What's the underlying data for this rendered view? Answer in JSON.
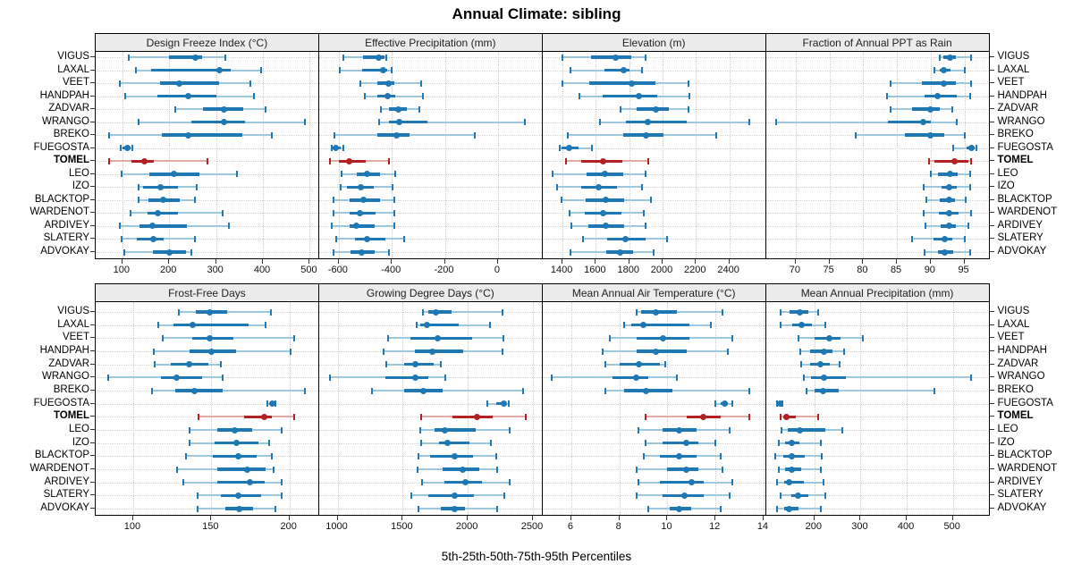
{
  "title": "Annual Climate: sibling",
  "caption": "5th-25th-50th-75th-95th Percentiles",
  "highlight_site": "TOMEL",
  "colors": {
    "series_blue": "#1f77b4",
    "series_blue_light": "#9ec7e0",
    "highlight_red": "#b22222",
    "highlight_red_light": "#e2aaa5",
    "strip_bg": "#ececec",
    "panel_border": "#000000",
    "grid": "#c8c8c8"
  },
  "chart_data": {
    "type": "dotplot-percentiles",
    "percentile_labels": [
      "5th",
      "25th",
      "50th",
      "75th",
      "95th"
    ],
    "legend_position": "none",
    "grid": "dotted",
    "sites": [
      "VIGUS",
      "LAXAL",
      "VEET",
      "HANDPAH",
      "ZADVAR",
      "WRANGO",
      "BREKO",
      "FUEGOSTA",
      "TOMEL",
      "LEO",
      "IZO",
      "BLACKTOP",
      "WARDENOT",
      "ARDIVEY",
      "SLATERY",
      "ADVOKAY"
    ],
    "panels": [
      {
        "title": "Design Freeze Index (°C)",
        "ticks": [
          100,
          200,
          300,
          400,
          500
        ],
        "xlim": [
          43,
          520
        ],
        "values": [
          [
            113,
            200,
            255,
            270,
            320
          ],
          [
            129,
            161,
            307,
            331,
            396
          ],
          [
            94,
            180,
            222,
            307,
            373
          ],
          [
            106,
            175,
            240,
            301,
            380
          ],
          [
            213,
            272,
            317,
            358,
            406
          ],
          [
            135,
            247,
            317,
            361,
            489
          ],
          [
            71,
            185,
            240,
            357,
            420
          ],
          [
            97,
            101,
            110,
            118,
            122
          ],
          [
            71,
            119,
            147,
            167,
            282
          ],
          [
            99,
            157,
            210,
            264,
            345
          ],
          [
            134,
            145,
            182,
            218,
            259
          ],
          [
            135,
            156,
            188,
            222,
            254
          ],
          [
            118,
            154,
            175,
            218,
            315
          ],
          [
            94,
            137,
            165,
            237,
            327
          ],
          [
            99,
            131,
            166,
            189,
            254
          ],
          [
            104,
            166,
            201,
            236,
            248
          ]
        ]
      },
      {
        "title": "Effective Precipitation (mm)",
        "ticks": [
          -600,
          -400,
          -200,
          0
        ],
        "xlim": [
          -674,
          168
        ],
        "values": [
          [
            -582,
            -507,
            -451,
            -427,
            -420
          ],
          [
            -597,
            -512,
            -432,
            -416,
            -400
          ],
          [
            -518,
            -456,
            -414,
            -389,
            -290
          ],
          [
            -503,
            -456,
            -417,
            -387,
            -282
          ],
          [
            -442,
            -411,
            -374,
            -344,
            -295
          ],
          [
            -448,
            -411,
            -372,
            -267,
            100
          ],
          [
            -615,
            -456,
            -383,
            -333,
            -88
          ],
          [
            -627,
            -622,
            -611,
            -593,
            -582
          ],
          [
            -633,
            -600,
            -560,
            -498,
            -411
          ],
          [
            -588,
            -531,
            -493,
            -445,
            -387
          ],
          [
            -594,
            -569,
            -518,
            -467,
            -397
          ],
          [
            -619,
            -560,
            -507,
            -445,
            -392
          ],
          [
            -619,
            -560,
            -520,
            -462,
            -389
          ],
          [
            -625,
            -560,
            -535,
            -464,
            -392
          ],
          [
            -610,
            -540,
            -492,
            -425,
            -355
          ],
          [
            -621,
            -554,
            -515,
            -465,
            -411
          ]
        ]
      },
      {
        "title": "Elevation (m)",
        "ticks": [
          1400,
          1600,
          1800,
          2000,
          2200,
          2400
        ],
        "xlim": [
          1280,
          2620
        ],
        "values": [
          [
            1402,
            1571,
            1717,
            1815,
            1899
          ],
          [
            1450,
            1650,
            1767,
            1801,
            1878
          ],
          [
            1400,
            1560,
            1815,
            1958,
            2158
          ],
          [
            1500,
            1641,
            1860,
            1967,
            2163
          ],
          [
            1749,
            1846,
            1958,
            2035,
            2154
          ],
          [
            1623,
            1780,
            1913,
            2145,
            2519
          ],
          [
            1432,
            1762,
            1899,
            2008,
            2323
          ],
          [
            1382,
            1396,
            1437,
            1494,
            1575
          ],
          [
            1423,
            1512,
            1641,
            1757,
            1913
          ],
          [
            1343,
            1543,
            1655,
            1762,
            1896
          ],
          [
            1366,
            1512,
            1616,
            1726,
            1874
          ],
          [
            1393,
            1539,
            1660,
            1767,
            1928
          ],
          [
            1441,
            1535,
            1646,
            1753,
            1890
          ],
          [
            1453,
            1553,
            1660,
            1767,
            1899
          ],
          [
            1521,
            1667,
            1776,
            1899,
            2029
          ],
          [
            1450,
            1660,
            1744,
            1821,
            1945
          ]
        ]
      },
      {
        "title": "Fraction of Annual PPT as Rain",
        "ticks": [
          70,
          75,
          80,
          85,
          90,
          95
        ],
        "xlim": [
          65.6,
          98.7
        ],
        "values": [
          [
            91.3,
            91.9,
            92.9,
            93.7,
            96.0
          ],
          [
            90.6,
            91.4,
            92.0,
            92.9,
            95.0
          ],
          [
            84.0,
            88.7,
            92.0,
            93.7,
            96.0
          ],
          [
            83.5,
            89.1,
            91.0,
            93.9,
            95.9
          ],
          [
            84.1,
            87.2,
            90.0,
            91.4,
            93.2
          ],
          [
            67.1,
            83.7,
            88.9,
            90.0,
            93.9
          ],
          [
            78.9,
            86.2,
            90.0,
            92.0,
            95.0
          ],
          [
            93.4,
            95.3,
            96.1,
            96.5,
            96.8
          ],
          [
            89.7,
            90.5,
            93.6,
            95.6,
            96.0
          ],
          [
            90.0,
            91.1,
            92.9,
            94.0,
            95.9
          ],
          [
            88.9,
            91.6,
            92.8,
            93.9,
            95.8
          ],
          [
            89.3,
            91.3,
            92.7,
            93.6,
            95.2
          ],
          [
            88.9,
            91.2,
            92.8,
            94.1,
            96.0
          ],
          [
            89.2,
            91.5,
            92.8,
            93.7,
            95.6
          ],
          [
            87.2,
            90.4,
            92.1,
            93.2,
            95.1
          ],
          [
            89.1,
            91.1,
            92.1,
            93.3,
            95.8
          ]
        ]
      },
      {
        "title": "Frost-Free Days",
        "ticks": [
          100,
          150,
          200
        ],
        "xlim": [
          76,
          219
        ],
        "values": [
          [
            129,
            140,
            149,
            160,
            188
          ],
          [
            116,
            126,
            138,
            174,
            185
          ],
          [
            119,
            138,
            149,
            164,
            203
          ],
          [
            113,
            136,
            150,
            166,
            201
          ],
          [
            114,
            124,
            136,
            148,
            156
          ],
          [
            84,
            118,
            128,
            144,
            157
          ],
          [
            112,
            127,
            139,
            157,
            210
          ],
          [
            186,
            188,
            189,
            190,
            191
          ],
          [
            142,
            171,
            184,
            189,
            203
          ],
          [
            136,
            154,
            165,
            176,
            195
          ],
          [
            136,
            152,
            166,
            180,
            187
          ],
          [
            134,
            151,
            167,
            179,
            189
          ],
          [
            128,
            154,
            173,
            185,
            190
          ],
          [
            132,
            154,
            175,
            184,
            195
          ],
          [
            141,
            156,
            167,
            182,
            195
          ],
          [
            141,
            159,
            168,
            177,
            191
          ]
        ]
      },
      {
        "title": "Growing Degree Days (°C)",
        "ticks": [
          1000,
          1500,
          2000,
          2500
        ],
        "xlim": [
          858,
          2574
        ],
        "values": [
          [
            1657,
            1696,
            1755,
            1874,
            2270
          ],
          [
            1604,
            1634,
            1684,
            1931,
            2171
          ],
          [
            1387,
            1561,
            1767,
            2030,
            2274
          ],
          [
            1352,
            1593,
            1725,
            1966,
            2268
          ],
          [
            1375,
            1508,
            1600,
            1737,
            1794
          ],
          [
            941,
            1366,
            1600,
            1698,
            1824
          ],
          [
            1261,
            1508,
            1657,
            1805,
            2423
          ],
          [
            2149,
            2217,
            2274,
            2297,
            2316
          ],
          [
            1645,
            1885,
            2073,
            2194,
            2446
          ],
          [
            1638,
            1748,
            1821,
            2062,
            2320
          ],
          [
            1641,
            1778,
            1844,
            2011,
            2176
          ],
          [
            1622,
            1709,
            1897,
            2039,
            2222
          ],
          [
            1616,
            1805,
            1961,
            2085,
            2224
          ],
          [
            1650,
            1817,
            1984,
            2110,
            2320
          ],
          [
            1565,
            1696,
            1902,
            2046,
            2281
          ],
          [
            1622,
            1794,
            1897,
            1977,
            2224
          ]
        ]
      },
      {
        "title": "Mean Annual Air Temperature (°C)",
        "ticks": [
          6,
          8,
          10,
          12,
          14
        ],
        "xlim": [
          4.8,
          14.1
        ],
        "values": [
          [
            8.7,
            8.9,
            9.5,
            10.4,
            12.3
          ],
          [
            8.2,
            8.5,
            9.0,
            10.9,
            11.8
          ],
          [
            7.6,
            8.7,
            9.8,
            10.9,
            12.7
          ],
          [
            7.3,
            8.7,
            9.5,
            10.8,
            12.5
          ],
          [
            7.4,
            8.0,
            8.8,
            9.7,
            9.9
          ],
          [
            5.2,
            7.7,
            8.7,
            9.2,
            10.4
          ],
          [
            7.4,
            8.2,
            9.1,
            10.2,
            13.4
          ],
          [
            12.0,
            12.2,
            12.4,
            12.5,
            12.7
          ],
          [
            9.1,
            10.8,
            11.5,
            12.2,
            13.4
          ],
          [
            8.8,
            9.8,
            10.5,
            11.2,
            12.6
          ],
          [
            9.1,
            9.8,
            10.8,
            11.3,
            12.0
          ],
          [
            9.0,
            9.7,
            10.5,
            11.2,
            12.2
          ],
          [
            8.7,
            10.0,
            10.8,
            11.3,
            12.3
          ],
          [
            8.8,
            9.7,
            11.0,
            11.5,
            12.7
          ],
          [
            8.7,
            9.8,
            10.7,
            11.5,
            12.6
          ],
          [
            9.2,
            10.1,
            10.5,
            11.0,
            12.2
          ]
        ]
      },
      {
        "title": "Mean Annual Precipitation (mm)",
        "ticks": [
          200,
          300,
          400,
          500
        ],
        "xlim": [
          95,
          579
        ],
        "values": [
          [
            126,
            146,
            168,
            186,
            209
          ],
          [
            126,
            152,
            172,
            194,
            223
          ],
          [
            166,
            201,
            232,
            256,
            305
          ],
          [
            169,
            190,
            221,
            240,
            265
          ],
          [
            172,
            190,
            213,
            234,
            255
          ],
          [
            177,
            193,
            221,
            269,
            540
          ],
          [
            182,
            201,
            219,
            252,
            459
          ],
          [
            119,
            122,
            125,
            127,
            131
          ],
          [
            126,
            132,
            140,
            159,
            209
          ],
          [
            128,
            143,
            169,
            223,
            261
          ],
          [
            123,
            137,
            150,
            168,
            214
          ],
          [
            116,
            132,
            150,
            179,
            216
          ],
          [
            123,
            137,
            150,
            172,
            213
          ],
          [
            119,
            134,
            145,
            177,
            219
          ],
          [
            127,
            150,
            165,
            187,
            224
          ],
          [
            119,
            135,
            145,
            165,
            214
          ]
        ]
      }
    ]
  }
}
